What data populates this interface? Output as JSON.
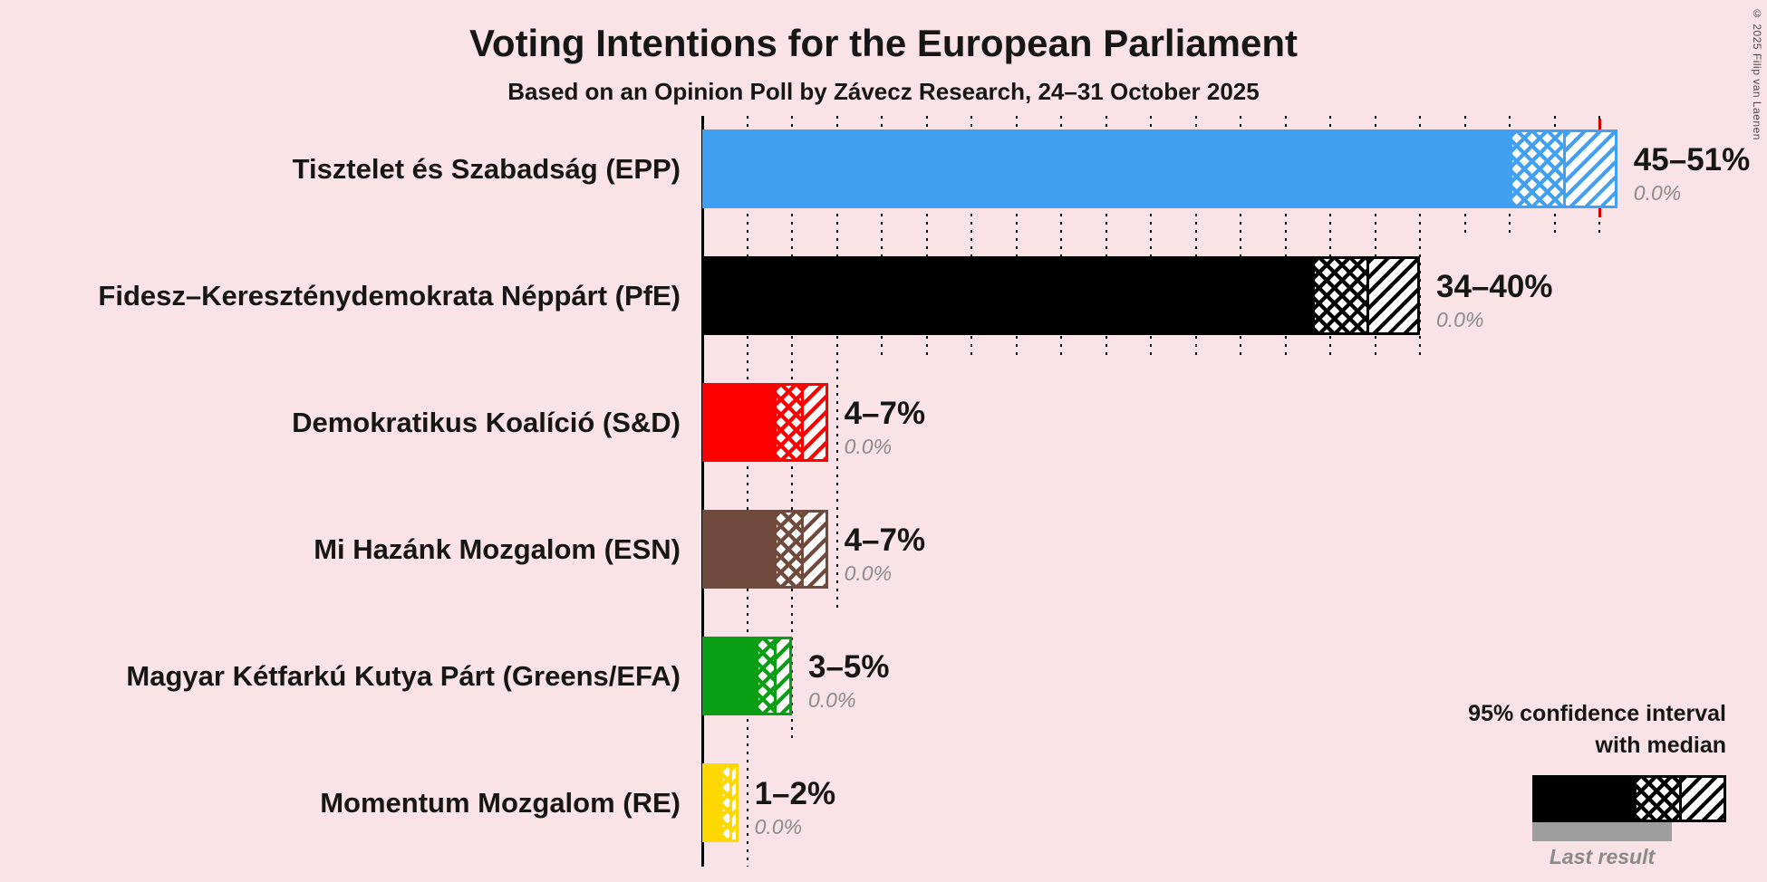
{
  "copyright": "© 2025 Filip van Laenen",
  "chart_data": {
    "type": "bar",
    "orientation": "horizontal",
    "title": "Voting Intentions for the European Parliament",
    "subtitle": "Based on an Opinion Poll by Závecz Research, 24–31 October 2025",
    "x_axis": {
      "min": 0,
      "max": 51,
      "gridline_step_pct": 2.5,
      "unit": "%",
      "grid": "dotted"
    },
    "majority_line_pct": 50,
    "colors": {
      "background": "#fae3e6",
      "majority_line": "#d40000",
      "last_result_bar": "#9e9e9e",
      "muted_text": "#8a8a8a"
    },
    "legend": {
      "ci_line1": "95% confidence interval",
      "ci_line2": "with median",
      "last_result": "Last result",
      "bar_color": "#000000"
    },
    "categories": [
      "Tisztelet és Szabadság (EPP)",
      "Fidesz–Kereszténydemokrata Néppárt (PfE)",
      "Demokratikus Koalíció (S&D)",
      "Mi Hazánk Mozgalom (ESN)",
      "Magyar Kétfarkú Kutya Párt (Greens/EFA)",
      "Momentum Mozgalom (RE)"
    ],
    "series": [
      {
        "party": "Tisztelet és Szabadság (EPP)",
        "ci_low": 45,
        "median": 48,
        "ci_high": 51,
        "range_label": "45–51%",
        "last_result": 0.0,
        "last_result_label": "0.0%",
        "color": "#42a0f2"
      },
      {
        "party": "Fidesz–Kereszténydemokrata Néppárt (PfE)",
        "ci_low": 34,
        "median": 37,
        "ci_high": 40,
        "range_label": "34–40%",
        "last_result": 0.0,
        "last_result_label": "0.0%",
        "color": "#000000"
      },
      {
        "party": "Demokratikus Koalíció (S&D)",
        "ci_low": 4,
        "median": 5.5,
        "ci_high": 7,
        "range_label": "4–7%",
        "last_result": 0.0,
        "last_result_label": "0.0%",
        "color": "#ff0000"
      },
      {
        "party": "Mi Hazánk Mozgalom (ESN)",
        "ci_low": 4,
        "median": 5.5,
        "ci_high": 7,
        "range_label": "4–7%",
        "last_result": 0.0,
        "last_result_label": "0.0%",
        "color": "#6f4a3d"
      },
      {
        "party": "Magyar Kétfarkú Kutya Párt (Greens/EFA)",
        "ci_low": 3,
        "median": 4,
        "ci_high": 5,
        "range_label": "3–5%",
        "last_result": 0.0,
        "last_result_label": "0.0%",
        "color": "#0a9e14"
      },
      {
        "party": "Momentum Mozgalom (RE)",
        "ci_low": 1,
        "median": 1.5,
        "ci_high": 2,
        "range_label": "1–2%",
        "last_result": 0.0,
        "last_result_label": "0.0%",
        "color": "#ffd800"
      }
    ]
  }
}
